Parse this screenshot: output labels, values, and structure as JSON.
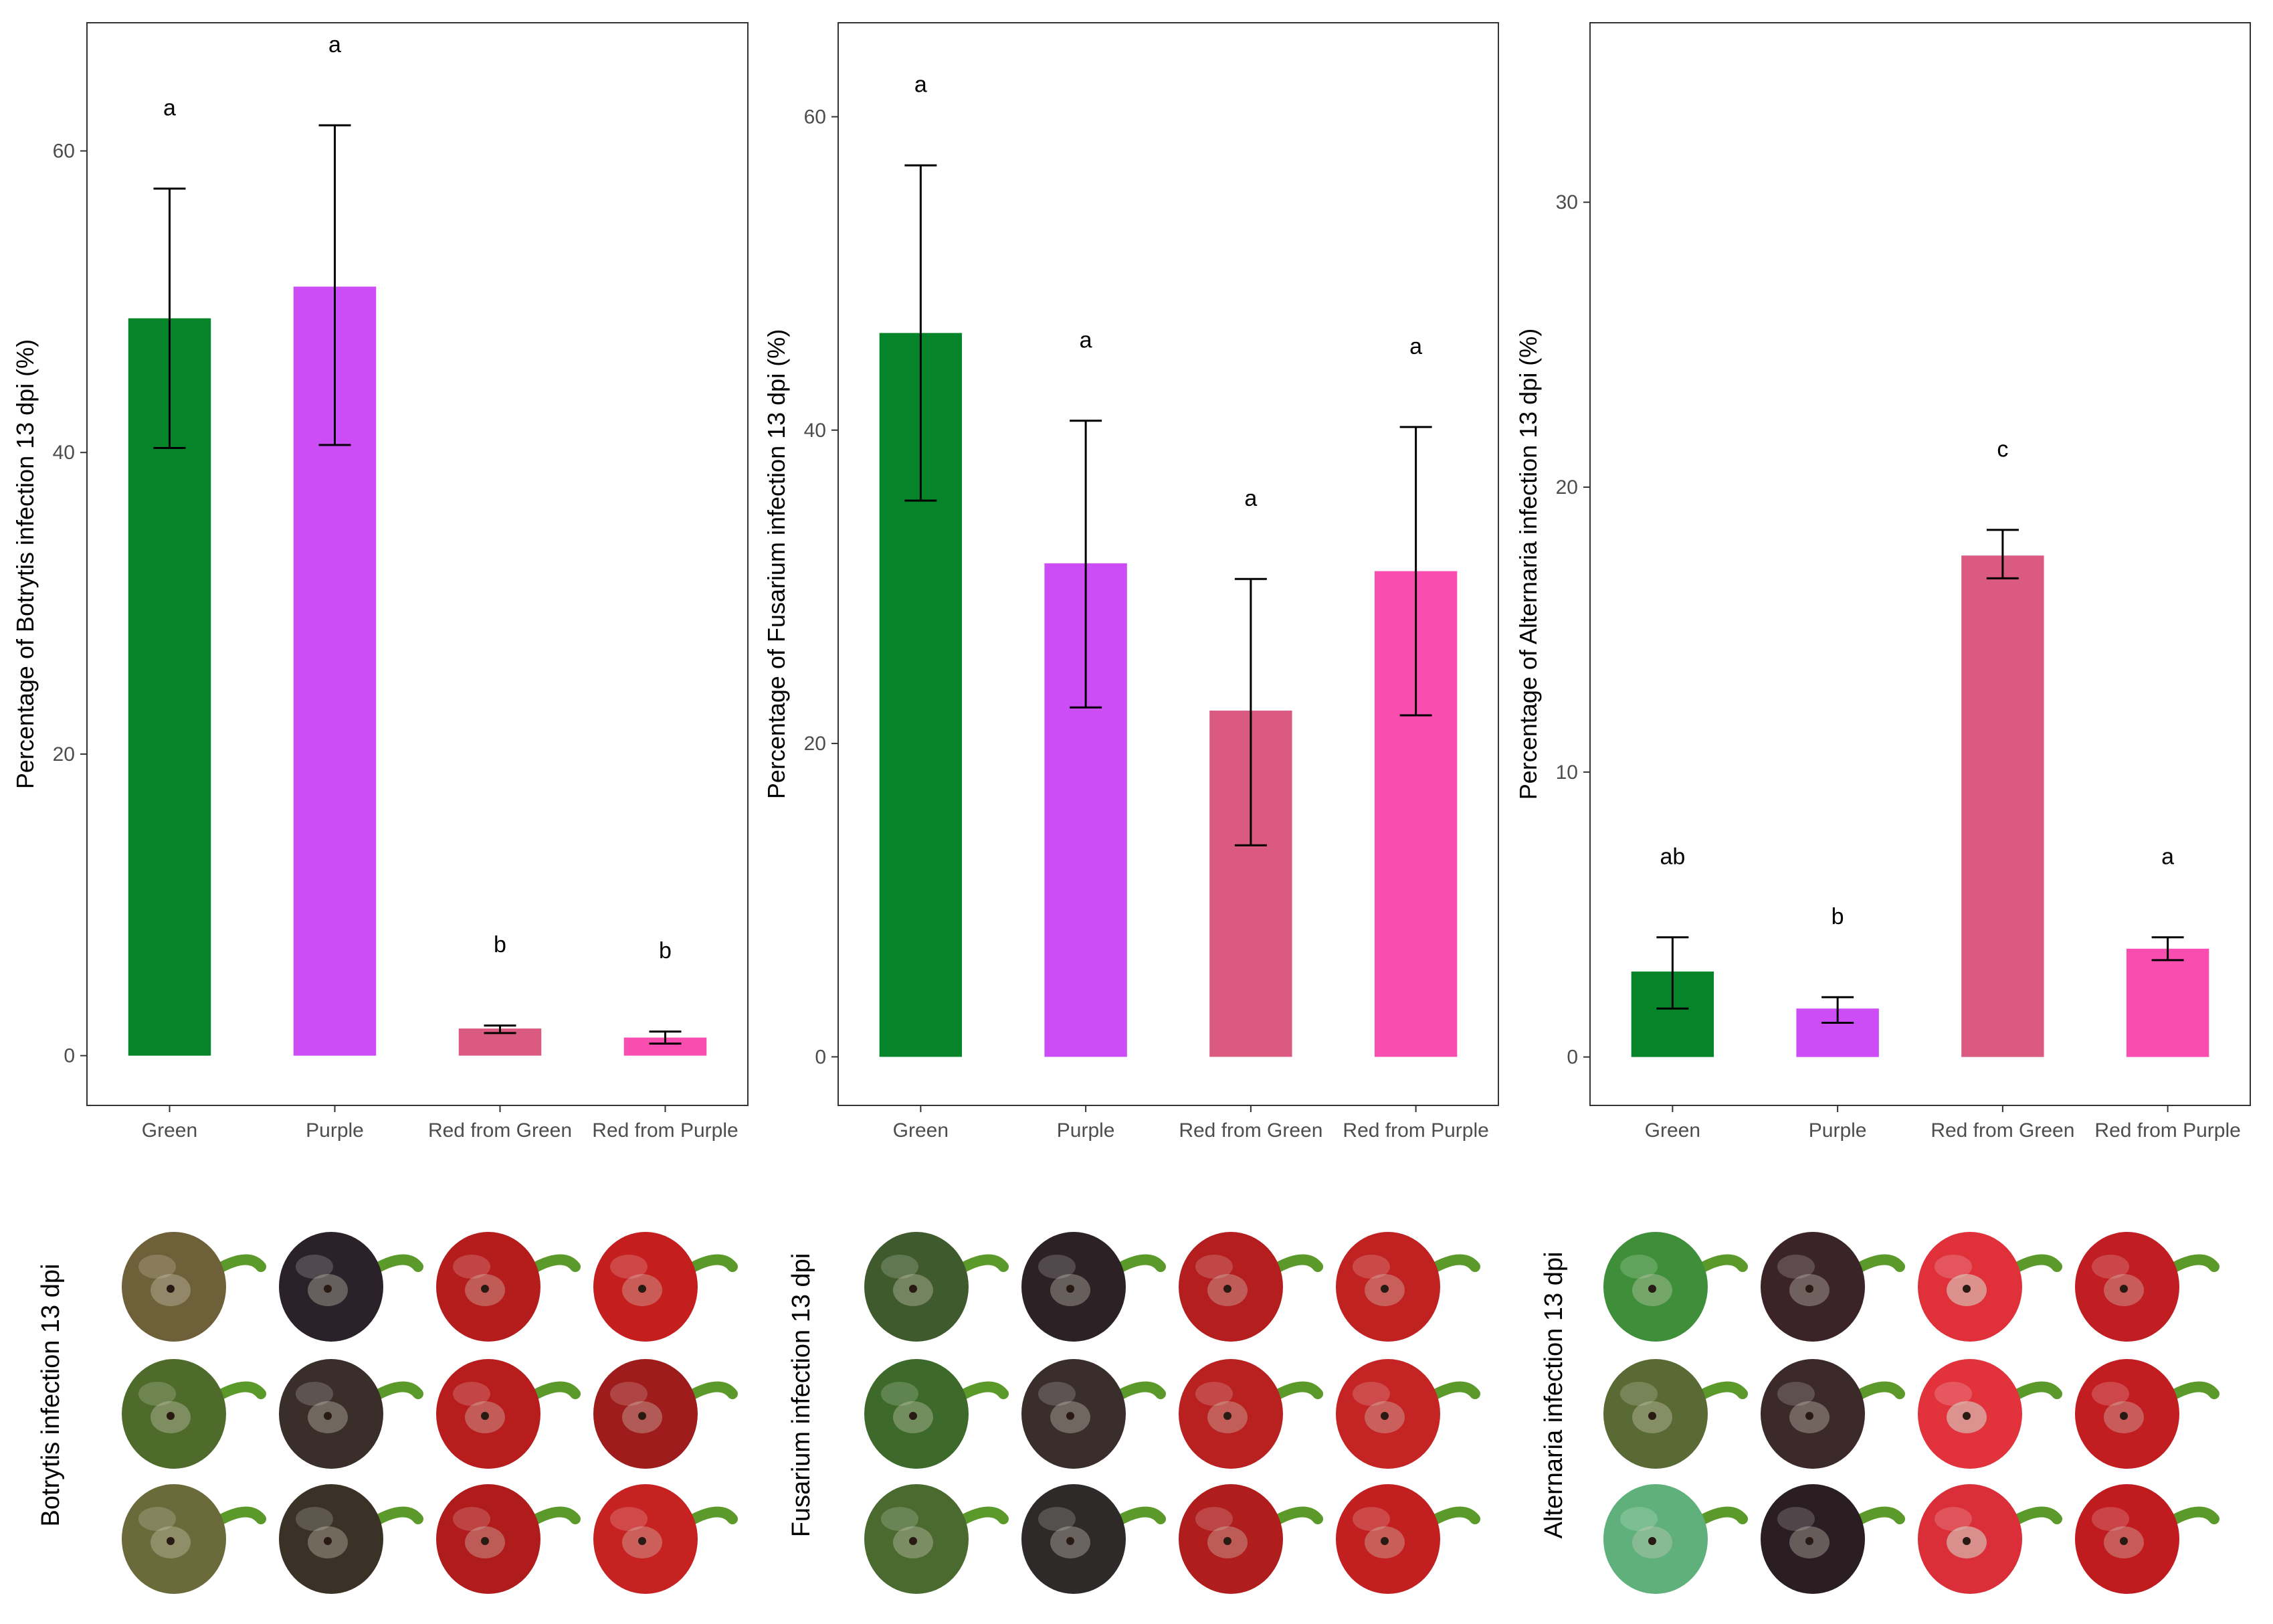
{
  "chart_data": [
    {
      "type": "bar",
      "categories": [
        "Green",
        "Purple",
        "Red from Green",
        "Red from Purple"
      ],
      "values": [
        48.9,
        51.0,
        1.8,
        1.2
      ],
      "error_low": [
        40.3,
        40.5,
        1.5,
        0.8
      ],
      "error_high": [
        57.5,
        61.7,
        2.0,
        1.6
      ],
      "significance": [
        "a",
        "a",
        "b",
        "b"
      ],
      "ylabel": "Percentage of Botrytis infection 13 dpi (%)",
      "yticks": [
        0,
        20,
        40,
        60
      ],
      "ylim": [
        -3.3,
        68.5
      ],
      "grid": false
    },
    {
      "type": "bar",
      "categories": [
        "Green",
        "Purple",
        "Red from Green",
        "Red from Purple"
      ],
      "values": [
        46.2,
        31.5,
        22.1,
        31.0
      ],
      "error_low": [
        35.5,
        22.3,
        13.5,
        21.8
      ],
      "error_high": [
        56.9,
        40.6,
        30.5,
        40.2
      ],
      "significance": [
        "a",
        "a",
        "a",
        "a"
      ],
      "ylabel": "Percentage of Fusarium infection 13 dpi (%)",
      "yticks": [
        0,
        20,
        40,
        60
      ],
      "ylim": [
        -3.1,
        66.0
      ],
      "grid": false
    },
    {
      "type": "bar",
      "categories": [
        "Green",
        "Purple",
        "Red from Green",
        "Red from Purple"
      ],
      "values": [
        3.0,
        1.7,
        17.6,
        3.8
      ],
      "error_low": [
        1.7,
        1.2,
        16.8,
        3.4
      ],
      "error_high": [
        4.2,
        2.1,
        18.5,
        4.2
      ],
      "significance": [
        "ab",
        "b",
        "c",
        "a"
      ],
      "ylabel": "Percentage of Alternaria infection 13 dpi (%)",
      "yticks": [
        0,
        10,
        20,
        30
      ],
      "ylim": [
        -1.7,
        36.3
      ],
      "grid": false
    }
  ],
  "photo_panels": {
    "captions": [
      "Botrytis infection 13 dpi",
      "Fusarium infection 13 dpi",
      "Alternaria infection 13 dpi"
    ],
    "fruit_rows": [
      [
        "#6e6038",
        "#2a2228",
        "#b51c1c",
        "#c41e1e"
      ],
      [
        "#4f6b2c",
        "#3a2e2a",
        "#b81d1d",
        "#9e1c1c"
      ],
      [
        "#6b6a3a",
        "#3a3226",
        "#b01c1c",
        "#c72222"
      ]
    ],
    "fusarium_rows": [
      [
        "#3f5a2c",
        "#2c2226",
        "#b41e1e",
        "#c02222"
      ],
      [
        "#3d6a2a",
        "#3a2e2c",
        "#b92020",
        "#c42424"
      ],
      [
        "#4a6a30",
        "#2e2a2a",
        "#b01d1d",
        "#c22020"
      ]
    ],
    "alternaria_rows": [
      [
        "#3f8f3a",
        "#3a2428",
        "#e0303a",
        "#c01e22"
      ],
      [
        "#5a6a34",
        "#3c2a2a",
        "#e2323c",
        "#c21e22"
      ],
      [
        "#5fb07a",
        "#2a1e22",
        "#da2e38",
        "#c01c20"
      ]
    ]
  },
  "colors": {
    "Green": "#05842a",
    "Purple": "#cc4cf5",
    "Red from Green": "#da5a82",
    "Red from Purple": "#f94eb0",
    "stem": "#5b9a2a"
  }
}
